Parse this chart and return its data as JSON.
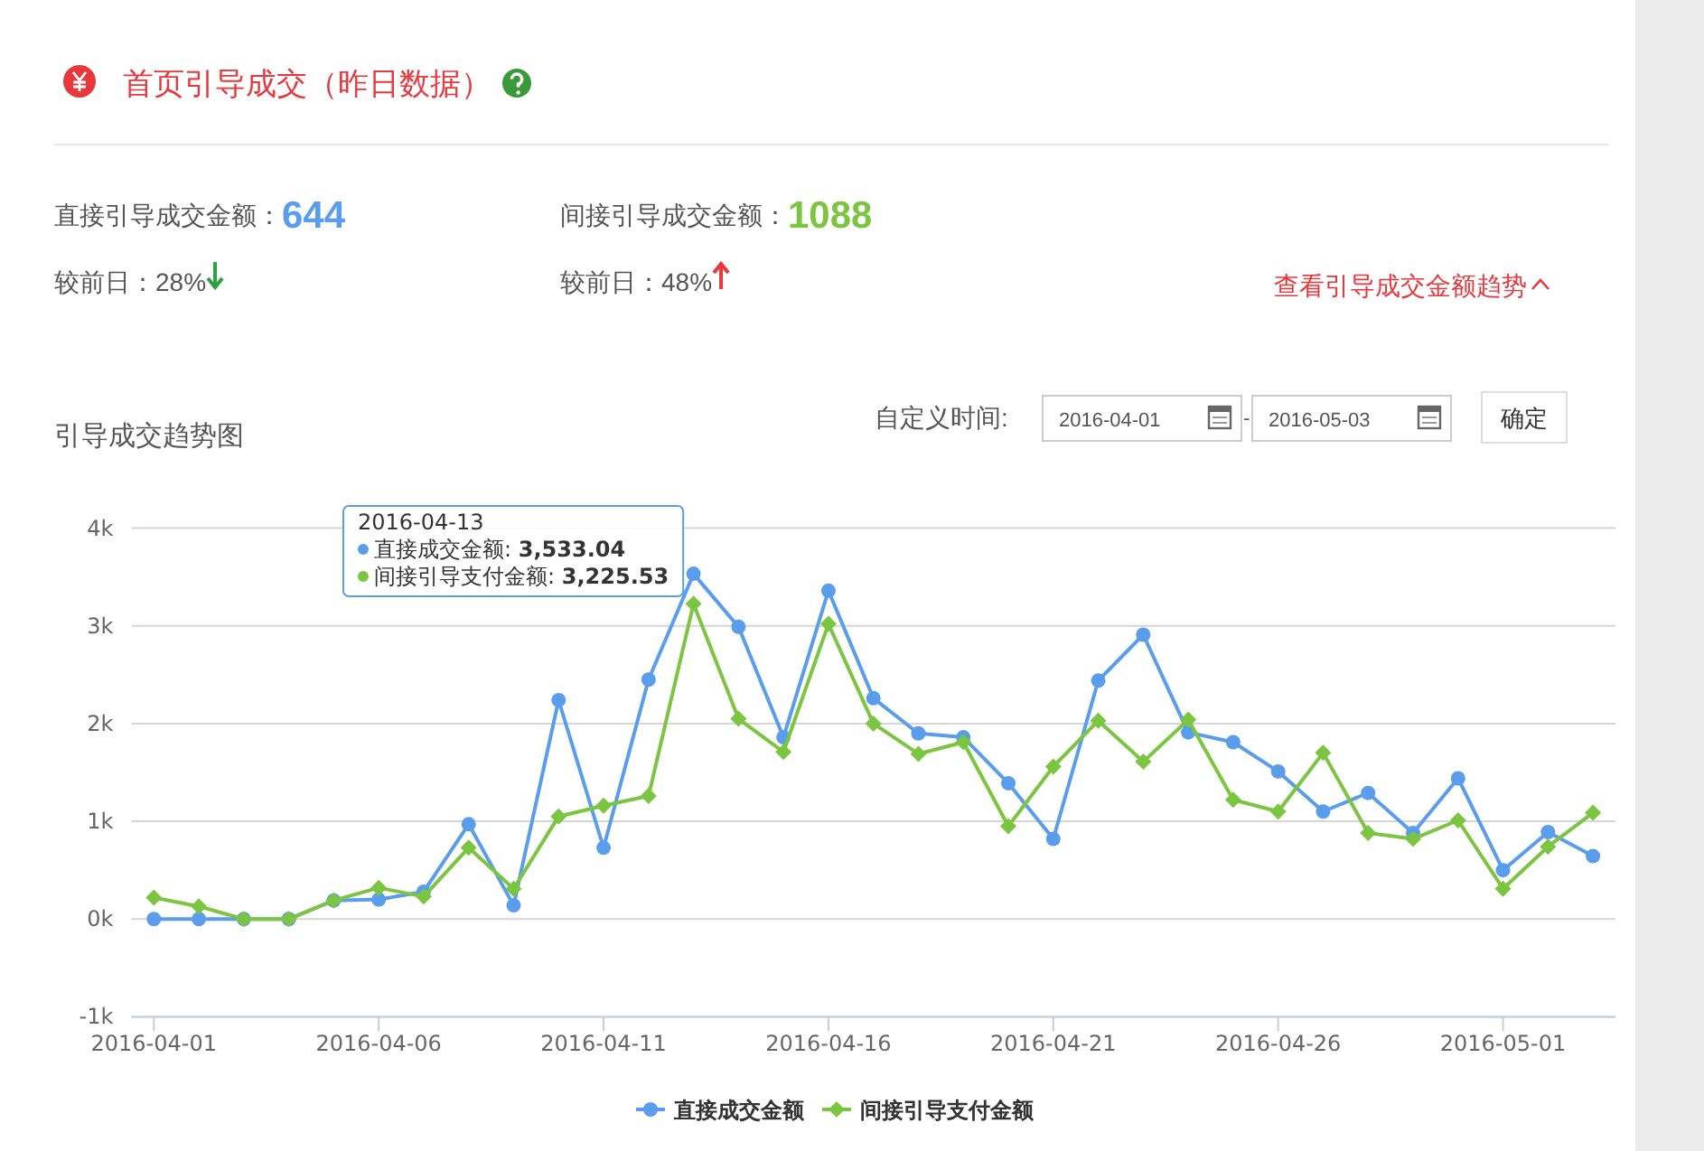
{
  "chart_data": [
    {
      "type": "other",
      "title": "首页引导成交（昨日数据）",
      "annotations": [
        "直接引导成交金额：",
        "644",
        "较前日：28%",
        "间接引导成交金额：",
        "1088",
        "较前日：48%",
        "查看引导成交金额趋势"
      ]
    },
    {
      "type": "line",
      "title": "引导成交趋势图",
      "x": [
        "2016-04-01",
        "2016-04-02",
        "2016-04-03",
        "2016-04-04",
        "2016-04-05",
        "2016-04-06",
        "2016-04-07",
        "2016-04-08",
        "2016-04-09",
        "2016-04-10",
        "2016-04-11",
        "2016-04-12",
        "2016-04-13",
        "2016-04-14",
        "2016-04-15",
        "2016-04-16",
        "2016-04-17",
        "2016-04-18",
        "2016-04-19",
        "2016-04-20",
        "2016-04-21",
        "2016-04-22",
        "2016-04-23",
        "2016-04-24",
        "2016-04-25",
        "2016-04-26",
        "2016-04-27",
        "2016-04-28",
        "2016-04-29",
        "2016-04-30",
        "2016-05-01",
        "2016-05-02",
        "2016-05-03"
      ],
      "xlim": [
        "2016-03-31T12:00",
        "2016-05-03T12:00"
      ],
      "xticks": [
        "2016-04-01",
        "2016-04-06",
        "2016-04-11",
        "2016-04-16",
        "2016-04-21",
        "2016-04-26",
        "2016-05-01"
      ],
      "ylim": [
        -1000,
        4000
      ],
      "yticks": [
        {
          "value": -1000,
          "label": "-1k"
        },
        {
          "value": 0,
          "label": "0k"
        },
        {
          "value": 1000,
          "label": "1k"
        },
        {
          "value": 2000,
          "label": "2k"
        },
        {
          "value": 3000,
          "label": "3k"
        },
        {
          "value": 4000,
          "label": "4k"
        }
      ],
      "grid": "y",
      "legend": "bottom",
      "line_style": "solid",
      "series": [
        {
          "name": "直接成交金额",
          "color": "#5b9ded",
          "marker": "circle",
          "values": [
            0,
            0,
            0,
            0,
            190,
            200,
            280,
            970,
            140,
            2240,
            730,
            2450,
            3533.04,
            2990,
            1860,
            3360,
            2260,
            1900,
            1860,
            1390,
            820,
            2440,
            2910,
            1910,
            1810,
            1510,
            1100,
            1290,
            880,
            1440,
            500,
            890,
            644
          ]
        },
        {
          "name": "间接引导支付金额",
          "color": "#7cc540",
          "marker": "diamond",
          "values": [
            220,
            130,
            0,
            0,
            190,
            320,
            230,
            730,
            310,
            1050,
            1160,
            1260,
            3225.53,
            2050,
            1710,
            3020,
            2000,
            1690,
            1810,
            950,
            1560,
            2030,
            1610,
            2040,
            1220,
            1100,
            1700,
            880,
            820,
            1010,
            310,
            740,
            1088
          ]
        }
      ],
      "annotations": [
        "自定义时间:",
        "2016-04-01",
        "-",
        "2016-05-03",
        "确定",
        "2016-04-13",
        "直接成交金额: 3,533.04",
        "间接引导支付金额: 3,225.53"
      ]
    }
  ]
}
